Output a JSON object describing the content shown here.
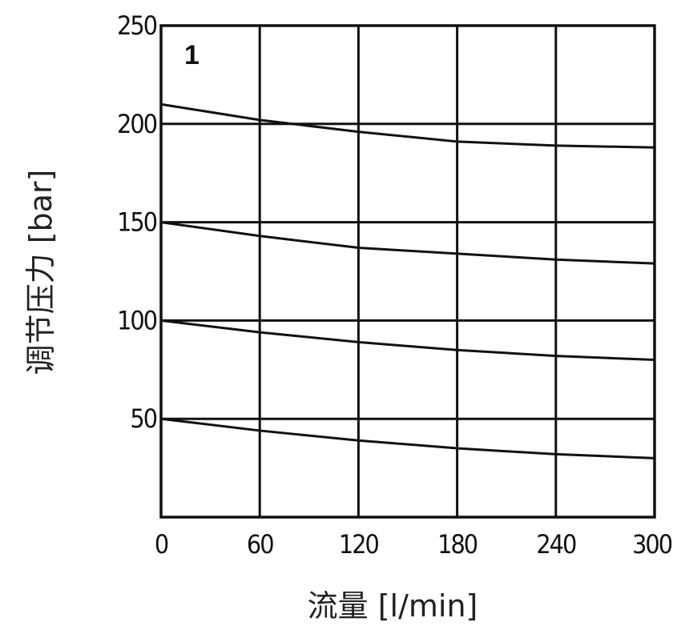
{
  "chart_data": {
    "type": "line",
    "panel_label": "1",
    "xlabel": "流量 [l/min]",
    "ylabel": "调节压力 [bar]",
    "x_ticks": [
      "0",
      "60",
      "120",
      "180",
      "240",
      "300"
    ],
    "y_ticks": [
      "50",
      "100",
      "150",
      "200",
      "250"
    ],
    "xlim": [
      0,
      300
    ],
    "ylim": [
      0,
      250
    ],
    "grid": true,
    "series": [
      {
        "x": [
          0,
          60,
          120,
          180,
          240,
          300
        ],
        "y": [
          210,
          202,
          196,
          191,
          189,
          188
        ]
      },
      {
        "x": [
          0,
          60,
          120,
          180,
          240,
          300
        ],
        "y": [
          150,
          143,
          137,
          134,
          131,
          129
        ]
      },
      {
        "x": [
          0,
          60,
          120,
          180,
          240,
          300
        ],
        "y": [
          100,
          94,
          89,
          85,
          82,
          80
        ]
      },
      {
        "x": [
          0,
          60,
          120,
          180,
          240,
          300
        ],
        "y": [
          50,
          44,
          39,
          35,
          32,
          30
        ]
      }
    ]
  }
}
